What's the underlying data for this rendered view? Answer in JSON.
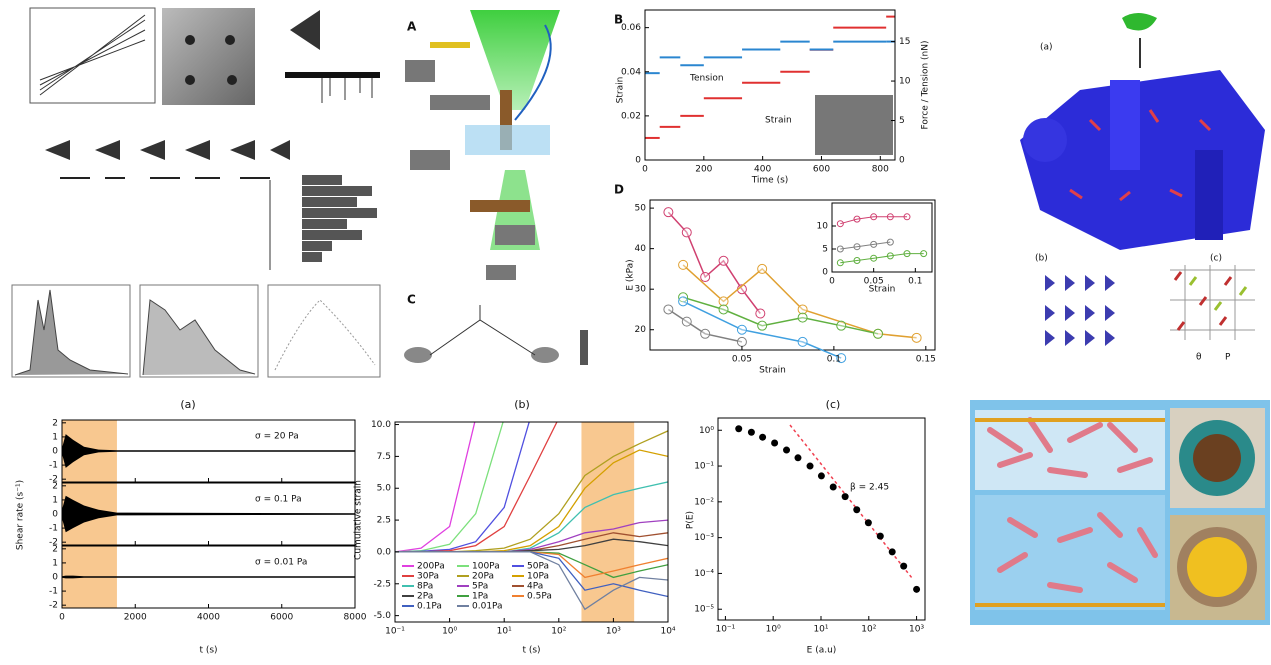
{
  "panel_labels": [
    "(a)",
    "(b)",
    "(c)"
  ],
  "letters": [
    "A",
    "B",
    "C",
    "D"
  ],
  "structure_figure": {
    "labels": [
      "(a)",
      "(b)",
      "(c)"
    ],
    "legend": [
      "θ",
      "P"
    ]
  },
  "force_plot": {
    "type": "line",
    "ylabel": "Strain",
    "y2label": "Force / Tension (nN)",
    "xlabel": "Time (s)",
    "xlim": [
      0,
      850
    ],
    "xticks": [
      0,
      200,
      400,
      600,
      800
    ],
    "ylim": [
      0,
      0.068
    ],
    "yticks": [
      0,
      0.02,
      0.04,
      0.06
    ],
    "y2lim": [
      0,
      19
    ],
    "y2ticks": [
      0,
      5,
      10,
      15
    ],
    "series": [
      {
        "name": "Strain",
        "color": "#e03030",
        "x": [
          0,
          50,
          120,
          200,
          330,
          460,
          560,
          640,
          820
        ],
        "values": [
          0.01,
          0.015,
          0.02,
          0.028,
          0.035,
          0.04,
          0.05,
          0.06,
          0.065
        ]
      },
      {
        "name": "Tension",
        "color": "#2a86d0",
        "axis": "y2",
        "x": [
          0,
          50,
          120,
          200,
          330,
          460,
          560,
          640,
          820
        ],
        "values": [
          11,
          13,
          12,
          13,
          14,
          15,
          14,
          15,
          15
        ]
      }
    ]
  },
  "modulus_plot": {
    "type": "line",
    "ylabel": "E (kPa)",
    "xlabel": "Strain",
    "xlim": [
      0,
      0.155
    ],
    "xticks": [
      0.05,
      0.1,
      0.15
    ],
    "ylim": [
      15,
      52
    ],
    "yticks": [
      20,
      30,
      40,
      50
    ],
    "series": [
      {
        "color": "#d04070",
        "x": [
          0.01,
          0.02,
          0.03,
          0.04,
          0.05,
          0.06
        ],
        "values": [
          49,
          44,
          33,
          37,
          30,
          24
        ]
      },
      {
        "color": "#e0a030",
        "x": [
          0.018,
          0.04,
          0.061,
          0.083,
          0.124,
          0.145
        ],
        "values": [
          36,
          27,
          35,
          25,
          19,
          18
        ]
      },
      {
        "color": "#60b040",
        "x": [
          0.018,
          0.04,
          0.061,
          0.083,
          0.104,
          0.124
        ],
        "values": [
          28,
          25,
          21,
          23,
          21,
          19
        ]
      },
      {
        "color": "#40a0e0",
        "x": [
          0.018,
          0.05,
          0.083,
          0.104
        ],
        "values": [
          27,
          20,
          17,
          13
        ]
      },
      {
        "color": "#808080",
        "x": [
          0.01,
          0.02,
          0.03,
          0.05
        ],
        "values": [
          25,
          22,
          19,
          17
        ]
      }
    ],
    "inset": {
      "xlabel": "Strain",
      "xlim": [
        0,
        0.12
      ],
      "xticks": [
        0,
        0.05,
        0.1
      ],
      "ylim": [
        0,
        15
      ],
      "yticks": [
        0,
        5,
        10
      ],
      "series": [
        {
          "color": "#d04070",
          "x": [
            0.01,
            0.03,
            0.05,
            0.07,
            0.09
          ],
          "values": [
            10.5,
            11.5,
            12,
            12,
            12
          ]
        },
        {
          "color": "#808080",
          "x": [
            0.01,
            0.03,
            0.05,
            0.07
          ],
          "values": [
            5,
            5.5,
            6,
            6.5
          ]
        },
        {
          "color": "#60b040",
          "x": [
            0.01,
            0.03,
            0.05,
            0.07,
            0.09,
            0.11
          ],
          "values": [
            2,
            2.5,
            3,
            3.5,
            4,
            4
          ]
        }
      ]
    }
  },
  "shear_rate": {
    "type": "area",
    "ylabel": "Shear rate (s⁻¹)",
    "xlabel": "t (s)",
    "xlim": [
      0,
      8000
    ],
    "xticks": [
      0,
      2000,
      4000,
      6000,
      8000
    ],
    "ylim": [
      -2.2,
      2.2
    ],
    "yticks": [
      -2,
      -1,
      0,
      1,
      2
    ],
    "shaded": [
      0,
      1500
    ],
    "shade_color": "#f8c890",
    "color": "#000000",
    "x": [
      0,
      100,
      300,
      600,
      1000,
      1500,
      8000
    ],
    "panels": [
      {
        "annotation": "σ = 20 Pa",
        "values": [
          0.2,
          1.2,
          0.8,
          0.3,
          0.1,
          0.05,
          0.05
        ]
      },
      {
        "annotation": "σ = 0.1 Pa",
        "values": [
          0.3,
          1.3,
          1.0,
          0.6,
          0.3,
          0.1,
          0.05
        ]
      },
      {
        "annotation": "σ = 0.01 Pa",
        "values": [
          0.05,
          0.1,
          0.1,
          0.05,
          0.05,
          0.05,
          0.05
        ]
      }
    ]
  },
  "cumulative_strain": {
    "type": "line",
    "ylabel": "Cumulative strain",
    "xlabel": "t (s)",
    "log_x": true,
    "xlim": [
      0.1,
      10000
    ],
    "xticks": [
      {
        "value": 0.1,
        "label": "10⁻¹"
      },
      {
        "value": 1,
        "label": "10⁰"
      },
      {
        "value": 10,
        "label": "10¹"
      },
      {
        "value": 100,
        "label": "10²"
      },
      {
        "value": 1000,
        "label": "10³"
      },
      {
        "value": 10000,
        "label": "10⁴"
      }
    ],
    "ylim": [
      -5.5,
      10.2
    ],
    "yticks": [
      {
        "value": -5,
        "label": "-5.0"
      },
      -2.5,
      {
        "value": 0,
        "label": "0.0"
      },
      2.5,
      {
        "value": 5,
        "label": "5.0"
      },
      7.5,
      {
        "value": 10,
        "label": "10.0"
      }
    ],
    "shaded": [
      260,
      2400
    ],
    "shade_color": "#f8c890",
    "x": [
      0.1,
      0.3,
      1,
      3,
      10,
      30,
      100,
      300,
      1000,
      3000,
      10000
    ],
    "series": [
      {
        "name": "200Pa",
        "color": "#e040e0",
        "values": [
          0,
          0.3,
          2,
          10.5,
          null,
          null,
          null,
          null,
          null,
          null,
          null
        ]
      },
      {
        "name": "100Pa",
        "color": "#7ce07c",
        "values": [
          0,
          0.1,
          0.6,
          3,
          10.5,
          null,
          null,
          null,
          null,
          null,
          null
        ]
      },
      {
        "name": "50Pa",
        "color": "#5050e0",
        "values": [
          0,
          0.05,
          0.2,
          0.8,
          3.5,
          10.5,
          null,
          null,
          null,
          null,
          null
        ]
      },
      {
        "name": "30Pa",
        "color": "#e04040",
        "values": [
          0,
          0,
          0.1,
          0.5,
          2,
          6,
          10.5,
          null,
          null,
          null,
          null
        ]
      },
      {
        "name": "20Pa",
        "color": "#b0a020",
        "values": [
          0,
          0,
          0,
          0.1,
          0.3,
          1,
          3,
          6,
          7.5,
          8.5,
          9.5
        ]
      },
      {
        "name": "10Pa",
        "color": "#d4a000",
        "values": [
          0,
          0,
          0,
          0,
          0.1,
          0.5,
          2,
          5,
          7,
          8,
          7.5
        ]
      },
      {
        "name": "8Pa",
        "color": "#40c0b0",
        "values": [
          0,
          0,
          0,
          0,
          0,
          0.3,
          1.5,
          3.5,
          4.5,
          5,
          5.5
        ]
      },
      {
        "name": "5Pa",
        "color": "#a040c0",
        "values": [
          0,
          0,
          0,
          0,
          0,
          0.2,
          0.8,
          1.5,
          1.8,
          2.3,
          2.5
        ]
      },
      {
        "name": "4Pa",
        "color": "#a05030",
        "values": [
          0,
          0,
          0,
          0,
          0,
          0.1,
          0.5,
          1,
          1.5,
          1.2,
          1.5
        ]
      },
      {
        "name": "2Pa",
        "color": "#404040",
        "values": [
          0,
          0,
          0,
          0,
          0,
          0.1,
          0.2,
          0.5,
          1,
          0.8,
          0.5
        ]
      },
      {
        "name": "1Pa",
        "color": "#40a040",
        "values": [
          0,
          0,
          0,
          0,
          0,
          0,
          -0.1,
          -1,
          -2,
          -1.5,
          -1
        ]
      },
      {
        "name": "0.5Pa",
        "color": "#f08030",
        "values": [
          0,
          0,
          0,
          0,
          0,
          0,
          -0.2,
          -2,
          -1.5,
          -1,
          -0.5
        ]
      },
      {
        "name": "0.1Pa",
        "color": "#4060c0",
        "values": [
          0,
          0,
          0,
          0,
          0,
          0,
          -0.5,
          -3,
          -2.5,
          -3,
          -3.5
        ]
      },
      {
        "name": "0.01Pa",
        "color": "#7080a0",
        "values": [
          0,
          0,
          0,
          0,
          0,
          0,
          -1,
          -4.5,
          -3,
          -2,
          -2.2
        ]
      }
    ]
  },
  "distribution": {
    "type": "scatter",
    "ylabel": "P(E)",
    "xlabel": "E (a.u)",
    "annotation": "β = 2.45",
    "log_x": true,
    "log_y": true,
    "xlim": [
      0.07,
      1500
    ],
    "xticks": [
      {
        "value": 0.1,
        "label": "10⁻¹"
      },
      {
        "value": 1,
        "label": "10⁰"
      },
      {
        "value": 10,
        "label": "10¹"
      },
      {
        "value": 100,
        "label": "10²"
      },
      {
        "value": 1000,
        "label": "10³"
      }
    ],
    "ylim": [
      5e-06,
      2.2
    ],
    "yticks": [
      {
        "value": 1,
        "label": "10⁰"
      },
      {
        "value": 0.1,
        "label": "10⁻¹"
      },
      {
        "value": 0.01,
        "label": "10⁻²"
      },
      {
        "value": 0.001,
        "label": "10⁻³"
      },
      {
        "value": 0.0001,
        "label": "10⁻⁴"
      },
      {
        "value": 1e-05,
        "label": "10⁻⁵"
      }
    ],
    "color": "#000000",
    "x": [
      0.19,
      0.35,
      0.6,
      1.07,
      1.9,
      3.3,
      5.9,
      10.2,
      18,
      32,
      56,
      98,
      174,
      309,
      537,
      1000
    ],
    "values": [
      1.1,
      0.88,
      0.64,
      0.44,
      0.28,
      0.17,
      0.1,
      0.053,
      0.026,
      0.014,
      0.006,
      0.0026,
      0.0011,
      0.0004,
      0.00016,
      3.6e-05
    ]
  }
}
